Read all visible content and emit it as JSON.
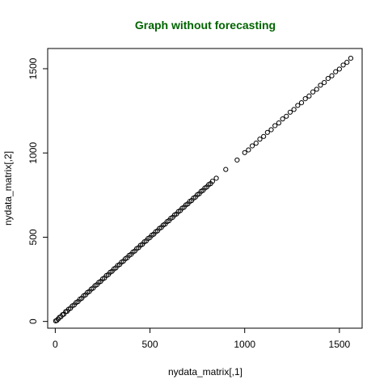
{
  "chart_data": {
    "type": "scatter",
    "title": "Graph without forecasting",
    "title_color": "#006400",
    "xlabel": "nydata_matrix[,1]",
    "ylabel": "nydata_matrix[,2]",
    "xlim": [
      -40,
      1620
    ],
    "ylim": [
      -40,
      1620
    ],
    "x_ticks": [
      0,
      500,
      1000,
      1500
    ],
    "y_ticks": [
      0,
      500,
      1000,
      1500
    ],
    "x_tick_labels": [
      "0",
      "500",
      "1000",
      "1500"
    ],
    "y_tick_labels": [
      "0",
      "500",
      "1000",
      "1500"
    ],
    "grid": false,
    "legend": "none",
    "marker": "open-circle",
    "point_color": "#000000",
    "series": [
      {
        "x": [
          2,
          8,
          15,
          22,
          30,
          38,
          45,
          55,
          62,
          70,
          80,
          90,
          100,
          110,
          120,
          130,
          140,
          150,
          160,
          170,
          180,
          190,
          200,
          210,
          220,
          230,
          240,
          250,
          260,
          270,
          280,
          290,
          300,
          310,
          320,
          330,
          340,
          350,
          360,
          370,
          380,
          390,
          400,
          410,
          420,
          430,
          440,
          450,
          460,
          470,
          480,
          490,
          500,
          510,
          520,
          530,
          540,
          550,
          560,
          570,
          580,
          590,
          600,
          610,
          620,
          630,
          640,
          650,
          660,
          670,
          680,
          690,
          700,
          710,
          720,
          730,
          740,
          750,
          760,
          770,
          780,
          790,
          800,
          810,
          820,
          830,
          850,
          900,
          960,
          1000,
          1020,
          1040,
          1060,
          1080,
          1100,
          1120,
          1140,
          1160,
          1180,
          1200,
          1220,
          1240,
          1260,
          1280,
          1300,
          1320,
          1340,
          1360,
          1380,
          1400,
          1420,
          1440,
          1460,
          1480,
          1500,
          1520,
          1540,
          1560
        ],
        "y": [
          3,
          6,
          14,
          24,
          28,
          40,
          43,
          58,
          60,
          72,
          78,
          92,
          98,
          112,
          118,
          132,
          138,
          152,
          158,
          172,
          178,
          192,
          198,
          212,
          218,
          232,
          238,
          252,
          258,
          272,
          278,
          292,
          298,
          312,
          318,
          332,
          338,
          352,
          358,
          372,
          378,
          392,
          398,
          412,
          418,
          432,
          438,
          452,
          458,
          472,
          478,
          492,
          498,
          512,
          518,
          532,
          538,
          552,
          558,
          572,
          578,
          592,
          598,
          612,
          618,
          632,
          638,
          652,
          658,
          672,
          678,
          692,
          698,
          712,
          718,
          732,
          738,
          752,
          758,
          772,
          778,
          792,
          798,
          812,
          818,
          832,
          850,
          902,
          958,
          1002,
          1018,
          1042,
          1058,
          1082,
          1098,
          1122,
          1138,
          1162,
          1178,
          1202,
          1218,
          1242,
          1258,
          1282,
          1298,
          1322,
          1338,
          1362,
          1378,
          1402,
          1418,
          1442,
          1458,
          1482,
          1498,
          1522,
          1538,
          1562
        ]
      }
    ]
  }
}
